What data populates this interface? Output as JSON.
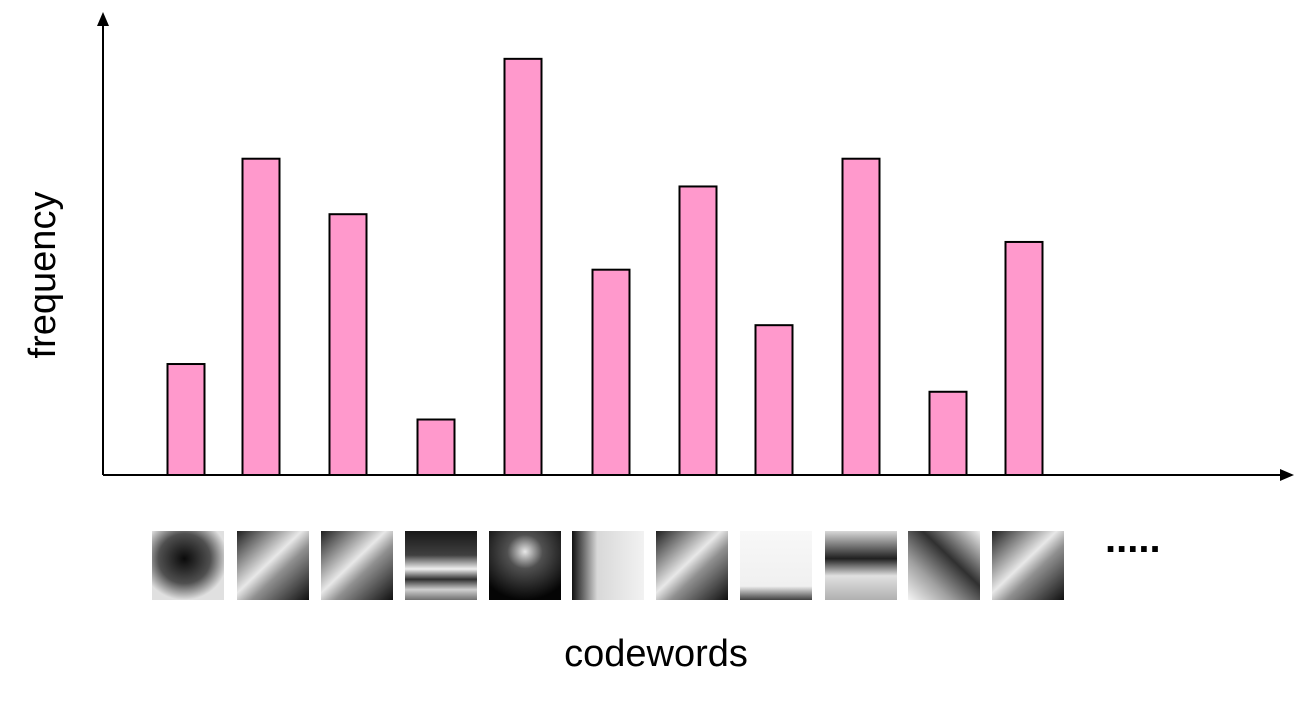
{
  "chart_data": {
    "type": "bar",
    "title": "",
    "xlabel": "codewords",
    "ylabel": "frequency",
    "values": [
      20,
      57,
      47,
      10,
      75,
      37,
      52,
      27,
      57,
      15,
      42
    ],
    "ylim": [
      0,
      82
    ],
    "grid": false,
    "legend": "none",
    "bar_color": "#ff99cc",
    "x_continuation": "....."
  },
  "codeword_patches": [
    "dark-v-blob",
    "diagonal-light-streak",
    "diagonal-light-band",
    "horizontal-light-bands",
    "dark-arch",
    "light-l-corner",
    "diagonal-light-band-2",
    "near-white-patch",
    "horizontal-gradient-bands",
    "diagonal-dark-streak",
    "diagonal-light-band-3"
  ]
}
